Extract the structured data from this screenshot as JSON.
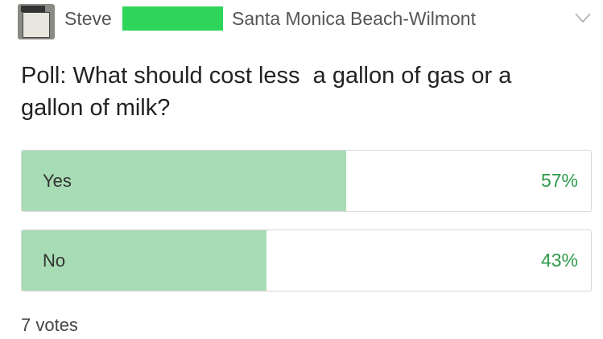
{
  "header": {
    "name": "Steve",
    "location": "Santa Monica Beach-Wilmont"
  },
  "poll": {
    "question": "Poll: What should cost less  a gallon of gas or a gallon of milk?",
    "options": [
      {
        "label": "Yes",
        "value": 57,
        "value_label": "57%"
      },
      {
        "label": "No",
        "value": 43,
        "value_label": "43%"
      }
    ],
    "votes": "7 votes"
  }
}
